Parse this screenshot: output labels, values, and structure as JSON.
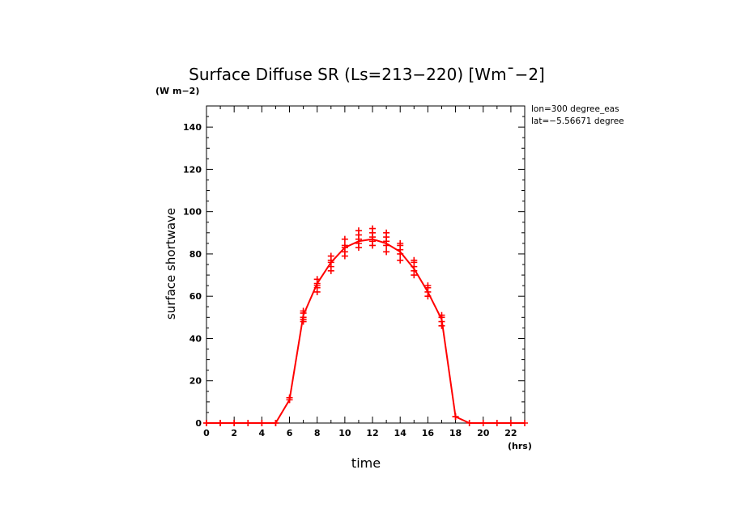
{
  "chart_data": {
    "type": "line",
    "title": "Surface Diffuse SR (Ls=213−220) [Wm¯−2]",
    "units_label": "(W m−2)",
    "xlabel": "time",
    "xunits": "(hrs)",
    "ylabel": "surface shortwave",
    "xlim": [
      0,
      23
    ],
    "ylim": [
      0,
      150
    ],
    "x_ticks": [
      0,
      2,
      4,
      6,
      8,
      10,
      12,
      14,
      16,
      18,
      20,
      22
    ],
    "y_ticks": [
      0,
      20,
      40,
      60,
      80,
      100,
      120,
      140
    ],
    "annotations": [
      "lon=300 degree_eas",
      "lat=−5.56671 degree"
    ],
    "color": "#ff0000",
    "series": [
      {
        "name": "mean",
        "x": [
          0,
          1,
          2,
          3,
          4,
          5,
          6,
          7,
          8,
          9,
          10,
          11,
          12,
          13,
          14,
          15,
          16,
          17,
          18,
          19,
          20,
          21,
          22,
          23
        ],
        "values": [
          0,
          0,
          0,
          0,
          0,
          0,
          11,
          51,
          66,
          76,
          83,
          86,
          87,
          85,
          81,
          73,
          62,
          49,
          3,
          0,
          0,
          0,
          0,
          0
        ]
      }
    ],
    "samples": [
      {
        "x": 0,
        "values": [
          0,
          0
        ]
      },
      {
        "x": 1,
        "values": [
          0,
          0
        ]
      },
      {
        "x": 2,
        "values": [
          0,
          0
        ]
      },
      {
        "x": 3,
        "values": [
          0,
          0
        ]
      },
      {
        "x": 4,
        "values": [
          0,
          0
        ]
      },
      {
        "x": 5,
        "values": [
          0,
          0
        ]
      },
      {
        "x": 6,
        "values": [
          11,
          12,
          11
        ]
      },
      {
        "x": 7,
        "values": [
          48,
          50,
          52,
          53,
          49
        ]
      },
      {
        "x": 8,
        "values": [
          62,
          64,
          66,
          68,
          65
        ]
      },
      {
        "x": 9,
        "values": [
          72,
          74,
          77,
          79,
          76
        ]
      },
      {
        "x": 10,
        "values": [
          79,
          81,
          84,
          87,
          83
        ]
      },
      {
        "x": 11,
        "values": [
          83,
          85,
          87,
          89,
          91
        ]
      },
      {
        "x": 12,
        "values": [
          84,
          86,
          88,
          90,
          92
        ]
      },
      {
        "x": 13,
        "values": [
          81,
          84,
          86,
          88,
          90
        ]
      },
      {
        "x": 14,
        "values": [
          77,
          80,
          82,
          84,
          85
        ]
      },
      {
        "x": 15,
        "values": [
          70,
          72,
          74,
          76,
          77
        ]
      },
      {
        "x": 16,
        "values": [
          60,
          62,
          64,
          65
        ]
      },
      {
        "x": 17,
        "values": [
          46,
          48,
          50,
          51
        ]
      },
      {
        "x": 18,
        "values": [
          3,
          3
        ]
      },
      {
        "x": 19,
        "values": [
          0
        ]
      },
      {
        "x": 20,
        "values": [
          0
        ]
      },
      {
        "x": 21,
        "values": [
          0
        ]
      },
      {
        "x": 22,
        "values": [
          0
        ]
      },
      {
        "x": 23,
        "values": [
          0
        ]
      }
    ]
  }
}
